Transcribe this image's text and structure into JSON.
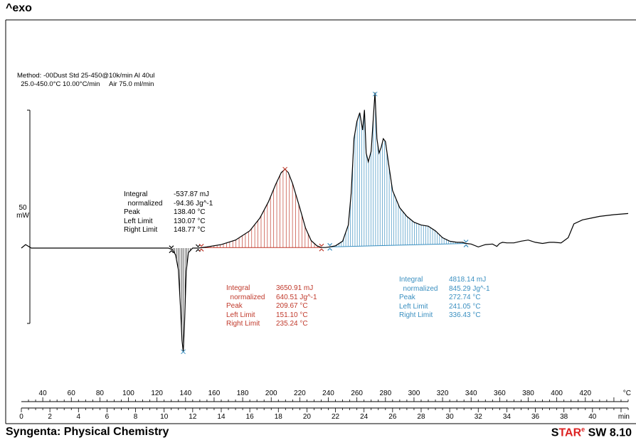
{
  "header": {
    "exo_label": "^exo"
  },
  "method": {
    "line1": "Method: -00Dust Std 25-450@10k/min Al 40ul",
    "line2": "  25.0-450.0°C 10.00°C/min     Air 75.0 ml/min"
  },
  "scale": {
    "value": "50",
    "unit": "mW"
  },
  "results": [
    {
      "color": "#000000",
      "rows": [
        {
          "label": "Integral",
          "value": "-537.87 mJ"
        },
        {
          "label": "  normalized",
          "value": "-94.36 Jg^-1"
        },
        {
          "label": "Peak",
          "value": "138.40 °C"
        },
        {
          "label": "Left Limit",
          "value": "130.07 °C"
        },
        {
          "label": "Right Limit",
          "value": "148.77 °C"
        }
      ]
    },
    {
      "color": "#c0392b",
      "rows": [
        {
          "label": "Integral",
          "value": "3650.91 mJ"
        },
        {
          "label": "  normalized",
          "value": "640.51 Jg^-1"
        },
        {
          "label": "Peak",
          "value": "209.67 °C"
        },
        {
          "label": "Left Limit",
          "value": "151.10 °C"
        },
        {
          "label": "Right Limit",
          "value": "235.24 °C"
        }
      ]
    },
    {
      "color": "#3a8fc0",
      "rows": [
        {
          "label": "Integral",
          "value": "4818.14 mJ"
        },
        {
          "label": "  normalized",
          "value": "845.29 Jg^-1"
        },
        {
          "label": "Peak",
          "value": "272.74 °C"
        },
        {
          "label": "Left Limit",
          "value": "241.05 °C"
        },
        {
          "label": "Right Limit",
          "value": "336.43 °C"
        }
      ]
    }
  ],
  "footer": {
    "left": "Syngenta: Physical Chemistry",
    "star_s": "S",
    "star_tar": "TAR",
    "star_sup": "e",
    "star_rest": " SW 8.10"
  },
  "chart_data": {
    "type": "line",
    "title": "",
    "ylabel": "^exo",
    "temperature_axis": {
      "unit": "°C",
      "ticks": [
        40,
        60,
        80,
        100,
        120,
        140,
        160,
        180,
        200,
        220,
        240,
        260,
        280,
        300,
        320,
        340,
        360,
        380,
        400,
        420
      ],
      "range": [
        25,
        450
      ]
    },
    "time_axis": {
      "unit": "min",
      "ticks": [
        0,
        2,
        4,
        6,
        8,
        10,
        12,
        14,
        16,
        18,
        20,
        22,
        24,
        26,
        28,
        30,
        32,
        34,
        36,
        38,
        40
      ],
      "range": [
        0,
        42.5
      ]
    },
    "scale_bar_mW": 50,
    "series": [
      {
        "x": [
          25,
          28,
          32,
          60,
          100,
          128,
          131,
          133,
          135,
          136.5,
          137.5,
          138.4,
          139.3,
          140.5,
          142,
          145,
          148.8,
          155,
          165,
          175,
          185,
          192,
          198,
          203,
          207,
          209.7,
          212,
          215,
          220,
          224,
          228,
          232,
          235.2,
          238,
          241,
          245,
          250,
          254,
          256,
          258,
          260,
          262,
          264,
          265.3,
          266.5,
          268,
          270,
          271.5,
          272.7,
          274,
          275.5,
          277,
          278.5,
          280,
          282,
          285,
          290,
          295,
          300,
          305,
          310,
          315,
          320,
          325,
          330,
          334,
          336.4,
          340,
          345,
          350,
          355,
          358,
          360,
          362,
          365,
          370,
          375,
          380,
          385,
          390,
          395,
          398,
          403,
          408,
          412,
          418,
          424,
          430,
          440,
          450
        ],
        "y": [
          0,
          6,
          0,
          0,
          0,
          0,
          -3,
          -12,
          -38,
          -105,
          -160,
          -180,
          -130,
          -40,
          -8,
          0,
          0,
          2,
          6,
          14,
          30,
          52,
          80,
          110,
          131,
          137,
          131,
          112,
          70,
          35,
          13,
          4,
          1,
          1,
          2,
          4,
          12,
          40,
          95,
          190,
          220,
          235,
          205,
          240,
          165,
          150,
          168,
          225,
          270,
          190,
          165,
          175,
          190,
          185,
          150,
          100,
          70,
          55,
          45,
          40,
          38,
          30,
          18,
          12,
          10,
          10,
          8,
          7,
          2,
          6,
          7,
          3,
          8,
          10,
          9,
          9,
          12,
          14,
          10,
          8,
          10,
          10,
          9,
          18,
          42,
          49,
          52,
          55,
          58,
          60
        ]
      }
    ],
    "integrations": [
      {
        "integral": "-537.87 mJ",
        "normalized": "-94.36 Jg^-1",
        "peak_C": 138.4,
        "left_limit_C": 130.07,
        "right_limit_C": 148.77
      },
      {
        "integral": "3650.91 mJ",
        "normalized": "640.51 Jg^-1",
        "peak_C": 209.67,
        "left_limit_C": 151.1,
        "right_limit_C": 235.24
      },
      {
        "integral": "4818.14 mJ",
        "normalized": "845.29 Jg^-1",
        "peak_C": 272.74,
        "left_limit_C": 241.05,
        "right_limit_C": 336.43
      }
    ],
    "legend": "none"
  }
}
